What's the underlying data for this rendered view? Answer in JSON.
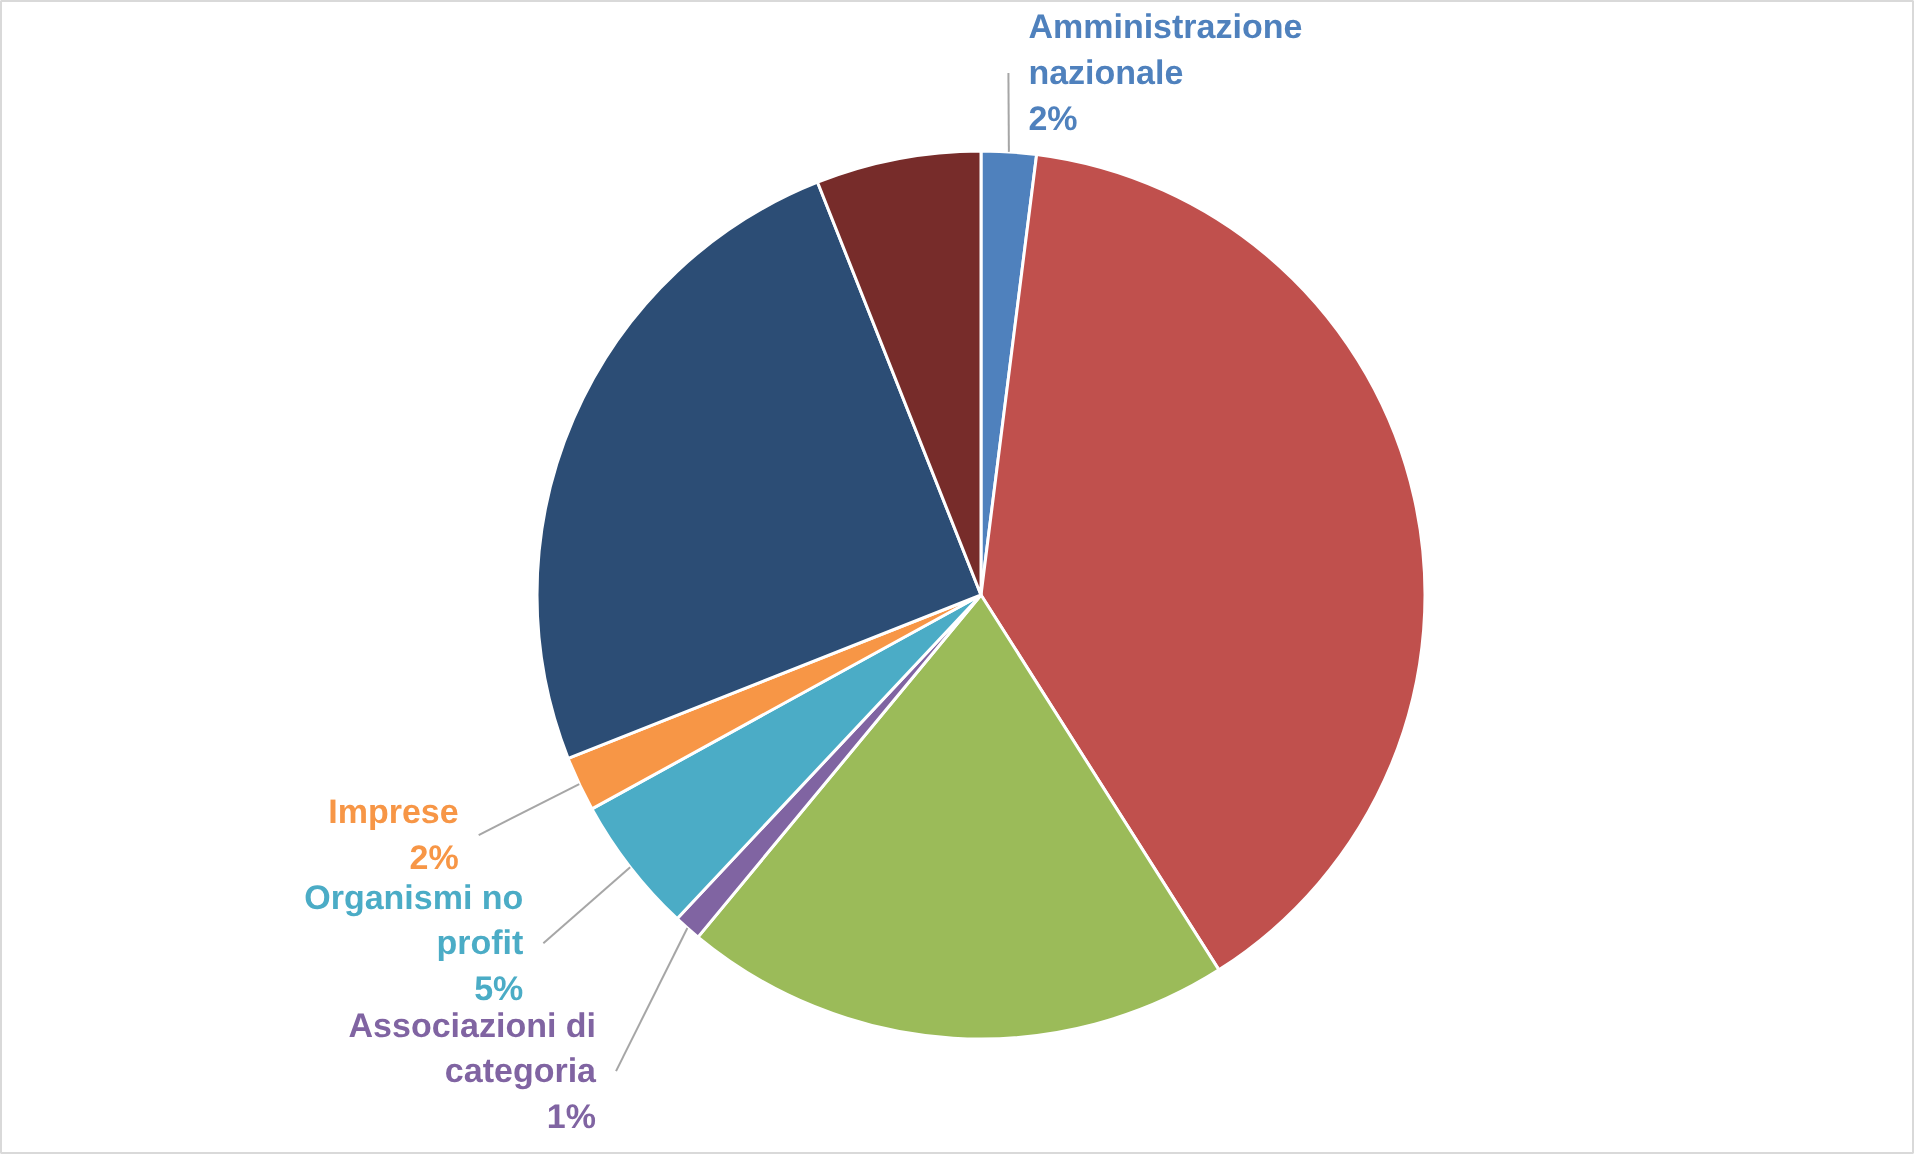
{
  "chart_data": {
    "type": "pie",
    "categories": [
      "Amministrazione nazionale",
      null,
      null,
      "Associazioni di categoria",
      "Organismi no profit",
      "Imprese",
      null,
      null
    ],
    "values": [
      2,
      39,
      20,
      1,
      5,
      2,
      25,
      6
    ],
    "colors": [
      "#4f81bd",
      "#c0504d",
      "#9bbb59",
      "#8064a2",
      "#4bacc6",
      "#f79646",
      "#2c4d75",
      "#772c2a"
    ],
    "value_labels": [
      "2%",
      null,
      null,
      "1%",
      "5%",
      "2%",
      null,
      null
    ]
  }
}
